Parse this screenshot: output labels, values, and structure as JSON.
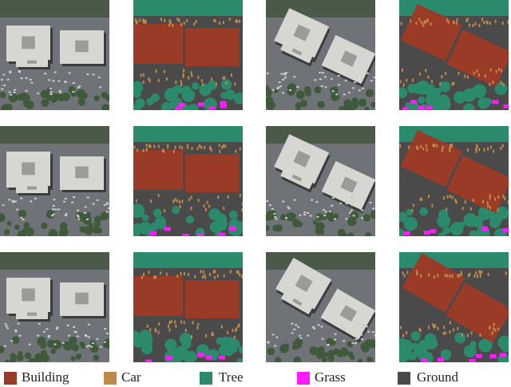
{
  "legend": [
    {
      "label": "Building",
      "color": "#9a3b28"
    },
    {
      "label": "Car",
      "color": "#c08a4a"
    },
    {
      "label": "Tree",
      "color": "#2b8a6c"
    },
    {
      "label": "Grass",
      "color": "#ff1aff"
    },
    {
      "label": "Ground",
      "color": "#4a4a4a"
    }
  ]
}
